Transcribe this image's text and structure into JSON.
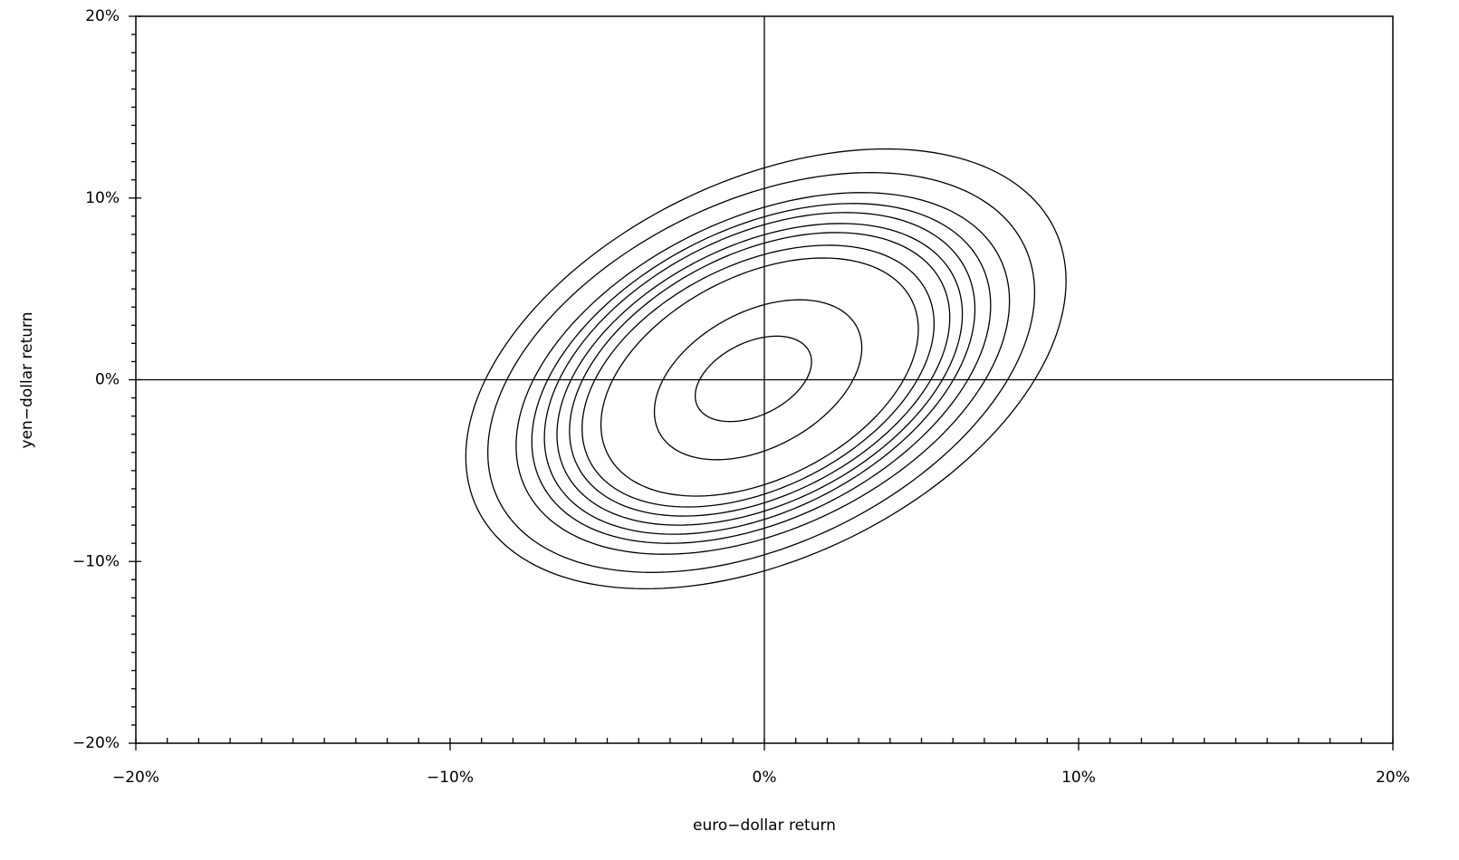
{
  "chart_data": {
    "type": "contour",
    "xlabel": "euro−dollar return",
    "ylabel": "yen−dollar return",
    "xlim": [
      -20,
      20
    ],
    "ylim": [
      -20,
      20
    ],
    "xticks": [
      {
        "value": -20,
        "label": "−20%"
      },
      {
        "value": -10,
        "label": "−10%"
      },
      {
        "value": 0,
        "label": "0%"
      },
      {
        "value": 10,
        "label": "10%"
      },
      {
        "value": 20,
        "label": "20%"
      }
    ],
    "yticks": [
      {
        "value": -20,
        "label": "−20%"
      },
      {
        "value": -10,
        "label": "−10%"
      },
      {
        "value": 0,
        "label": "0%"
      },
      {
        "value": 10,
        "label": "10%"
      },
      {
        "value": 20,
        "label": "20%"
      }
    ],
    "xminorticks": [
      -19,
      -18,
      -17,
      -16,
      -15,
      -14,
      -13,
      -12,
      -11,
      -9,
      -8,
      -7,
      -6,
      -5,
      -4,
      -3,
      -2,
      -1,
      1,
      2,
      3,
      4,
      5,
      6,
      7,
      8,
      9,
      11,
      12,
      13,
      14,
      15,
      16,
      17,
      18,
      19
    ],
    "yminorticks": [
      -19,
      -18,
      -17,
      -16,
      -15,
      -14,
      -13,
      -12,
      -11,
      -9,
      -8,
      -7,
      -6,
      -5,
      -4,
      -3,
      -2,
      -1,
      1,
      2,
      3,
      4,
      5,
      6,
      7,
      8,
      9,
      11,
      12,
      13,
      14,
      15,
      16,
      17,
      18,
      19
    ],
    "zero_lines": true,
    "color": "#000000",
    "rho": 0.4,
    "contours": [
      {
        "x_range": [
          -9.5,
          9.6
        ],
        "y_range": [
          -11.5,
          12.7
        ]
      },
      {
        "x_range": [
          -8.8,
          8.6
        ],
        "y_range": [
          -10.6,
          11.4
        ]
      },
      {
        "x_range": [
          -7.9,
          7.8
        ],
        "y_range": [
          -9.6,
          10.3
        ]
      },
      {
        "x_range": [
          -7.4,
          7.2
        ],
        "y_range": [
          -9.0,
          9.7
        ]
      },
      {
        "x_range": [
          -7.0,
          6.7
        ],
        "y_range": [
          -8.5,
          9.2
        ]
      },
      {
        "x_range": [
          -6.6,
          6.3
        ],
        "y_range": [
          -8.0,
          8.6
        ]
      },
      {
        "x_range": [
          -6.2,
          5.9
        ],
        "y_range": [
          -7.5,
          8.1
        ]
      },
      {
        "x_range": [
          -5.8,
          5.4
        ],
        "y_range": [
          -7.0,
          7.4
        ]
      },
      {
        "x_range": [
          -5.2,
          4.9
        ],
        "y_range": [
          -6.4,
          6.7
        ]
      },
      {
        "x_range": [
          -3.5,
          3.1
        ],
        "y_range": [
          -4.4,
          4.4
        ]
      },
      {
        "x_range": [
          -2.2,
          1.5
        ],
        "y_range": [
          -2.3,
          2.4
        ]
      }
    ]
  }
}
